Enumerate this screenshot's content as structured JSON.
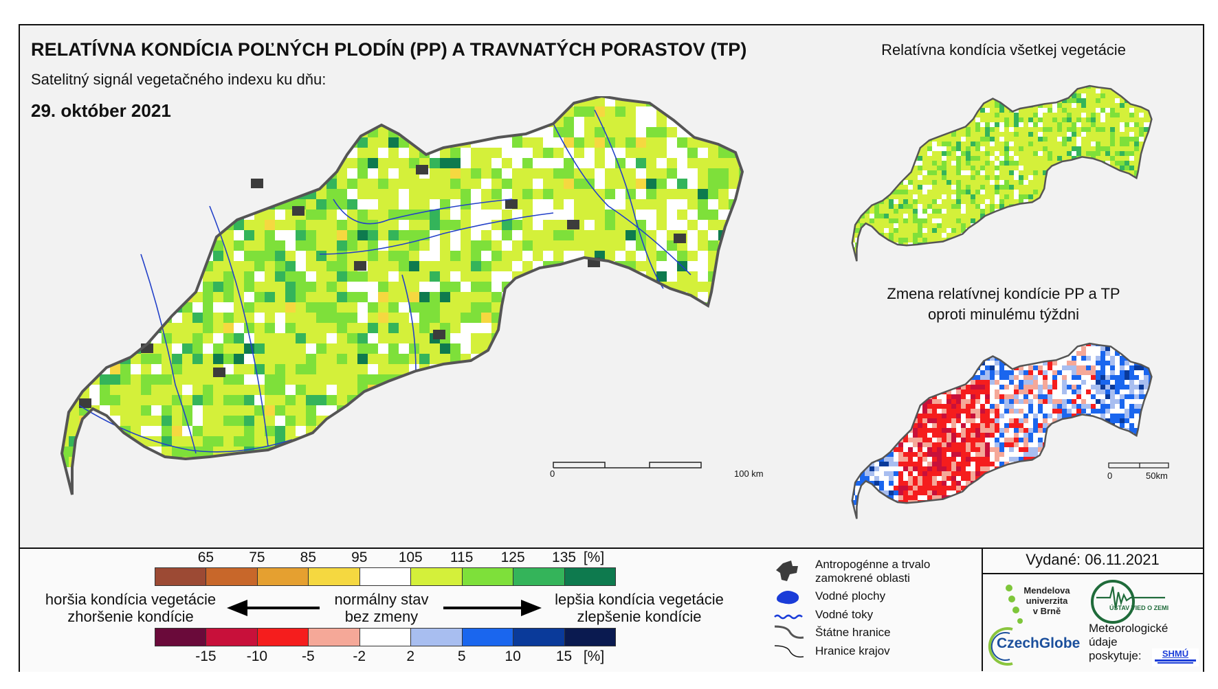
{
  "header": {
    "title": "RELATÍVNA KONDÍCIA POĽNÝCH PLODÍN (PP) A TRAVNATÝCH PORASTOV (TP)",
    "subtitle": "Satelitný signál vegetačného indexu ku dňu:",
    "date": "29. október 2021"
  },
  "inset_top": {
    "title": "Relatívna kondícia všetkej vegetácie"
  },
  "inset_bottom": {
    "title_line1": "Zmena relatívnej kondície PP a TP",
    "title_line2": "oproti minulému týždni"
  },
  "main_scale": {
    "start": "0",
    "end": "100 km"
  },
  "inset_scale": {
    "start": "0",
    "end": "50km"
  },
  "legend_condition": {
    "ticks": [
      "65",
      "75",
      "85",
      "95",
      "105",
      "115",
      "125",
      "135"
    ],
    "unit": "[%]",
    "colors": [
      "#9c4a34",
      "#c8672a",
      "#e5a030",
      "#f5d840",
      "#ffffff",
      "#d4f03a",
      "#7ee03a",
      "#34b45a",
      "#0e7a4e"
    ]
  },
  "legend_change": {
    "ticks": [
      "-15",
      "-10",
      "-5",
      "-2",
      "2",
      "5",
      "10",
      "15"
    ],
    "unit": "[%]",
    "colors": [
      "#6a0a3a",
      "#c8103a",
      "#f51d1d",
      "#f5a898",
      "#ffffff",
      "#a8bef0",
      "#1a66ee",
      "#0a3a9a",
      "#0a1a50"
    ]
  },
  "legend_text": {
    "worse_line1": "horšia kondícia vegetácie",
    "worse_line2": "zhoršenie kondície",
    "normal_line1": "normálny stav",
    "normal_line2": "bez zmeny",
    "better_line1": "lepšia kondícia vegetácie",
    "better_line2": "zlepšenie kondície"
  },
  "map_legend": [
    {
      "icon": "urban-area-icon",
      "label_line1": "Antropogénne a trvalo",
      "label_line2": "zamokrené oblasti"
    },
    {
      "icon": "water-body-icon",
      "label_line1": "Vodné plochy"
    },
    {
      "icon": "river-icon",
      "label_line1": "Vodné toky"
    },
    {
      "icon": "state-border-icon",
      "label_line1": "Štátne hranice"
    },
    {
      "icon": "region-border-icon",
      "label_line1": "Hranice krajov"
    }
  ],
  "issued": {
    "text": "Vydané: 06.11.2021"
  },
  "logos": {
    "mendel": [
      "Mendelova",
      "univerzita",
      "v Brně"
    ],
    "czechglobe": "CzechGlobe",
    "uvoz": "ÚSTAV VIED O ZEMI",
    "meteo_line1": "Meteorologické",
    "meteo_line2": "údaje",
    "meteo_line3": "poskytuje:",
    "shmu": "SHMÚ"
  }
}
